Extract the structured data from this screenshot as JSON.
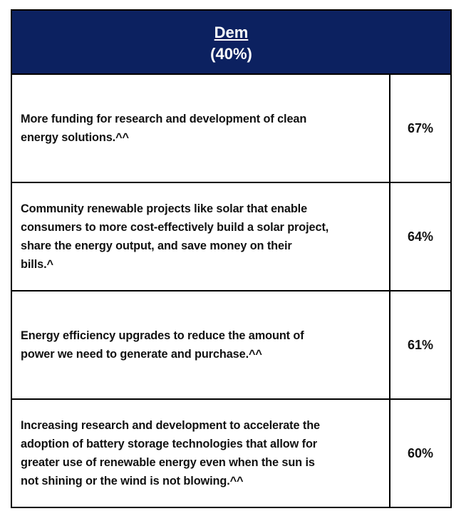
{
  "header": {
    "title": "Dem",
    "subtitle": "(40%)"
  },
  "table": {
    "rows": [
      {
        "text": [
          "More funding for research and development of clean",
          "energy solutions.^^"
        ],
        "value": "67%"
      },
      {
        "text": [
          "Community renewable projects like solar that enable",
          "consumers to more cost-effectively build a solar project,",
          "share the energy output, and save money on  their",
          "bills.^"
        ],
        "value": "64%"
      },
      {
        "text": [
          "Energy efficiency upgrades to reduce the amount of",
          "power we need to generate and purchase.^^"
        ],
        "value": "61%"
      },
      {
        "text": [
          "Increasing research and development to accelerate the",
          "adoption of battery storage technologies that allow for",
          "greater use of renewable energy even when the sun is",
          "not shining or the wind is not blowing.^^"
        ],
        "value": "60%"
      }
    ]
  }
}
